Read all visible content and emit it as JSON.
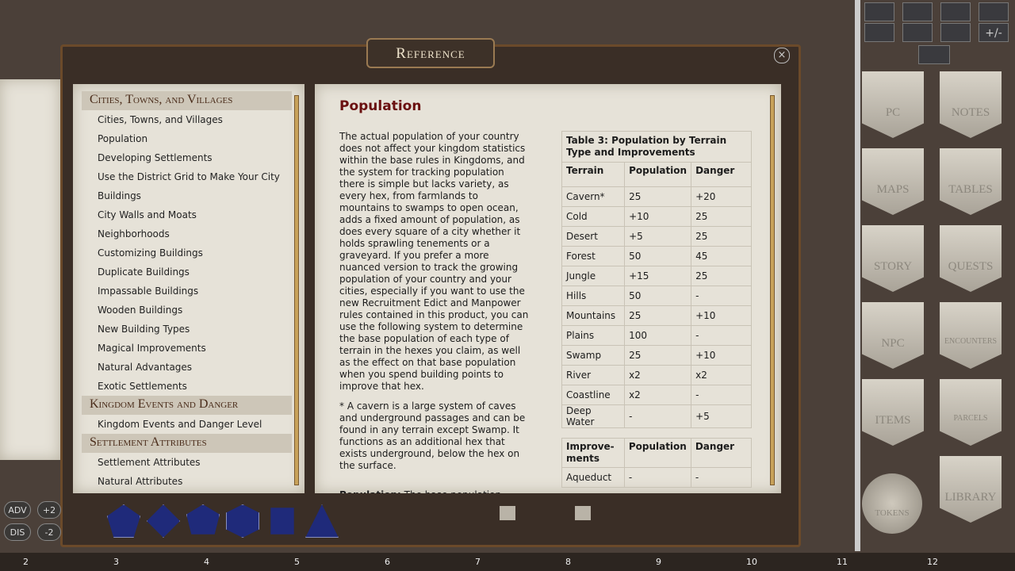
{
  "window": {
    "title": "Reference"
  },
  "toolbar": {
    "label": "+/-"
  },
  "toc": {
    "sections": [
      {
        "heading": "Cities, Towns, and Villages",
        "items": [
          "Cities, Towns, and Villages",
          "Population",
          "Developing Settlements",
          "Use the District Grid to Make Your City",
          "Buildings",
          "City Walls and Moats",
          "Neighborhoods",
          "Customizing Buildings",
          "Duplicate Buildings",
          "Impassable Buildings",
          "Wooden Buildings",
          "New Building Types",
          "Magical Improvements",
          "Natural Advantages",
          "Exotic Settlements"
        ]
      },
      {
        "heading": "Kingdom Events and Danger",
        "items": [
          "Kingdom Events and Danger Level"
        ]
      },
      {
        "heading": "Settlement Attributes",
        "items": [
          "Settlement Attributes",
          "Natural Attributes"
        ]
      }
    ]
  },
  "article": {
    "title": "Population",
    "paragraphs": [
      "The actual population of your country does not affect your kingdom statistics within the base rules in Kingdoms, and the system for tracking population there is simple but lacks variety, as every hex, from farmlands to mountains to swamps to open ocean, adds a fixed amount of population, as does every square of a city whether it holds sprawling tenements or a graveyard. If you prefer a more nuanced version to track the growing population of your country and your cities, especially if you want to use the new Recruitment Edict and Manpower rules contained in this product, you can use the following system to determine the base population of each type of terrain in the hexes you claim, as well as the effect on that base population when you spend building points to improve that hex.",
      "* A cavern is a large system of caves and underground passages and can be found in any terrain except Swamp. It functions as an additional hex that exists underground, below the hex on the surface."
    ],
    "definition": {
      "term": "Population:",
      "text": " The base population within a claimed hex. This population is doubled if the hex contains a river or a coastline and tripled if it contains both a river and a"
    },
    "table1": {
      "caption": "Table 3: Population by Terrain Type and Improvements",
      "headers": [
        "Terrain",
        "Population",
        "Danger"
      ],
      "rows": [
        [
          "Cavern*",
          "25",
          "+20"
        ],
        [
          "Cold",
          "+10",
          "25"
        ],
        [
          "Desert",
          "+5",
          "25"
        ],
        [
          "Forest",
          "50",
          "45"
        ],
        [
          "Jungle",
          "+15",
          "25"
        ],
        [
          "Hills",
          "50",
          "-"
        ],
        [
          "Mountains",
          "25",
          "+10"
        ],
        [
          "Plains",
          "100",
          "-"
        ],
        [
          "Swamp",
          "25",
          "+10"
        ],
        [
          "River",
          "x2",
          "x2"
        ],
        [
          "Coastline",
          "x2",
          "-"
        ],
        [
          "Deep Water",
          "-",
          "+5"
        ]
      ]
    },
    "table2": {
      "headers": [
        "Improve-ments",
        "Population",
        "Danger"
      ],
      "rows": [
        [
          "Aqueduct",
          "-",
          "-"
        ]
      ]
    }
  },
  "sidebar": {
    "buttons": [
      "PC",
      "Notes",
      "Maps",
      "Tables",
      "Story",
      "Quests",
      "NPC",
      "Encounters",
      "Items",
      "Parcels",
      "Tokens",
      "Library"
    ]
  },
  "modifiers": {
    "buttons": [
      "ADV",
      "DIS"
    ],
    "values": [
      "+2",
      "-2"
    ]
  },
  "ruler": {
    "labels": [
      "2",
      "3",
      "4",
      "5",
      "6",
      "7",
      "8",
      "9",
      "10",
      "11",
      "12"
    ]
  }
}
